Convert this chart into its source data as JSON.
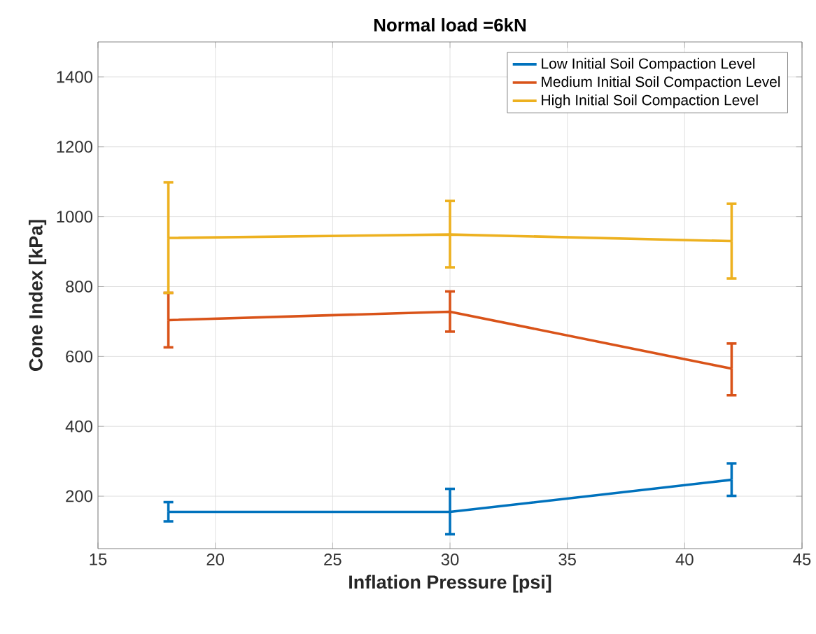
{
  "chart_data": {
    "type": "line",
    "title": "Normal load =6kN",
    "xlabel": "Inflation Pressure [psi]",
    "ylabel": "Cone Index [kPa]",
    "x": [
      18,
      30,
      42
    ],
    "series": [
      {
        "name": "Low Initial Soil Compaction Level",
        "color": "#0072bd",
        "values": [
          155,
          155,
          247
        ],
        "errors": [
          [
            128,
            183
          ],
          [
            91,
            221
          ],
          [
            201,
            294
          ]
        ]
      },
      {
        "name": "Medium Initial Soil Compaction Level",
        "color": "#d95319",
        "values": [
          704,
          728,
          565
        ],
        "errors": [
          [
            626,
            782
          ],
          [
            671,
            786
          ],
          [
            489,
            637
          ]
        ]
      },
      {
        "name": "High Initial Soil Compaction Level",
        "color": "#edb120",
        "values": [
          939,
          949,
          930
        ],
        "errors": [
          [
            782,
            1098
          ],
          [
            855,
            1045
          ],
          [
            823,
            1037
          ]
        ]
      }
    ],
    "xlim": [
      15,
      45
    ],
    "xticks": [
      15,
      20,
      25,
      30,
      35,
      40,
      45
    ],
    "ylim": [
      50,
      1500
    ],
    "yticks": [
      200,
      400,
      600,
      800,
      1000,
      1200,
      1400
    ],
    "grid": true,
    "legend": "top right",
    "marker": "none",
    "line_style": "solid"
  }
}
